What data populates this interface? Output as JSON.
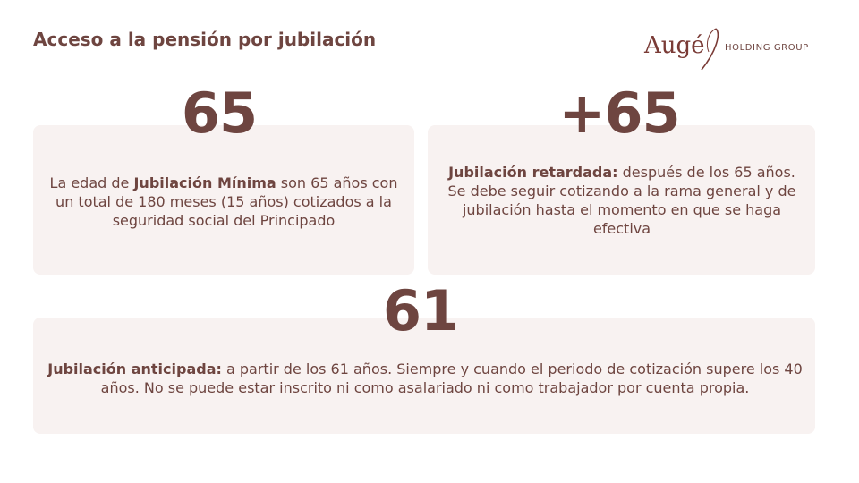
{
  "title": "Acceso a la pensión por jubilación",
  "logo": {
    "wordmark": "Augé",
    "subtitle": "HOLDING GROUP"
  },
  "cards": [
    {
      "number": "65",
      "text_before": "La edad de ",
      "bold": "Jubilación Mínima",
      "text_after": " son 65 años con un total de 180 meses (15 años) cotizados a la seguridad social del Principado"
    },
    {
      "number": "+65",
      "text_before": "",
      "bold": "Jubilación retardada:",
      "text_after": " después de los 65 años. Se debe seguir cotizando a la rama general y de jubilación hasta el momento en que se haga efectiva"
    },
    {
      "number": "61",
      "text_before": "",
      "bold": "Jubilación anticipada:",
      "text_after": " a partir de los 61 años. Siempre y cuando el periodo de cotización supere los 40 años. No se puede estar inscrito ni como asalariado ni como trabajador por cuenta propia."
    }
  ],
  "colors": {
    "accent": "#6e4540",
    "card_background": "#f8f2f1",
    "logo": "#7a3b36"
  }
}
